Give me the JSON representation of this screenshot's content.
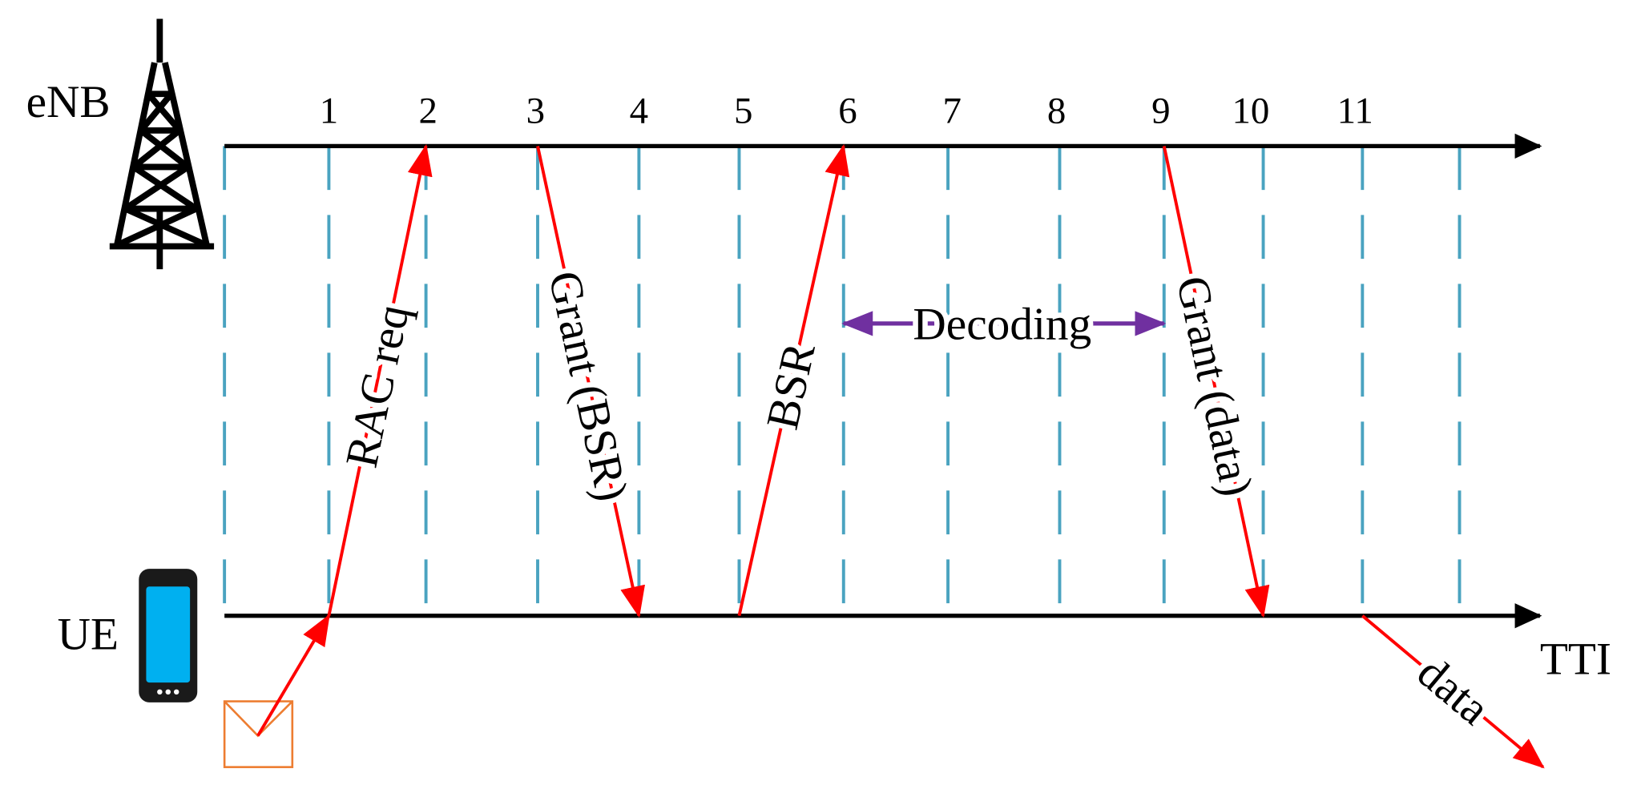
{
  "actors": {
    "enb": "eNB",
    "ue": "UE"
  },
  "axis_label": "TTI",
  "ticks": [
    "1",
    "2",
    "3",
    "4",
    "5",
    "6",
    "7",
    "8",
    "9",
    "10",
    "11"
  ],
  "messages": [
    {
      "label": "RAC req"
    },
    {
      "label": "Grant (BSR)"
    },
    {
      "label": "BSR"
    },
    {
      "label": "Grant (data)"
    },
    {
      "label": "data"
    }
  ],
  "decoding": "Decoding"
}
